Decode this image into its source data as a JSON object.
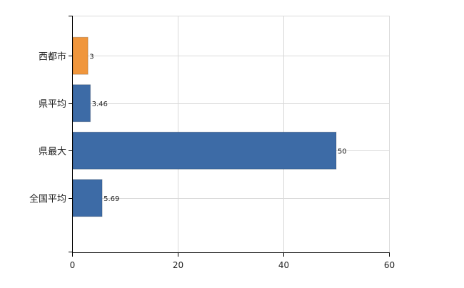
{
  "chart_data": {
    "type": "bar",
    "orientation": "horizontal",
    "categories": [
      "西都市",
      "県平均",
      "県最大",
      "全国平均"
    ],
    "values": [
      3,
      3.46,
      50,
      5.69
    ],
    "data_labels": [
      "3",
      "3.46",
      "50",
      "5.69"
    ],
    "bar_colors": [
      "#f0963c",
      "#3d6ba6",
      "#3d6ba6",
      "#3d6ba6"
    ],
    "xlim": [
      0,
      60
    ],
    "xticks": [
      0,
      20,
      40,
      60
    ],
    "xtick_labels": [
      "0",
      "20",
      "40",
      "60"
    ],
    "grid": true,
    "title": "",
    "xlabel": "",
    "ylabel": ""
  },
  "colors": {
    "highlight": "#f0963c",
    "bar": "#3d6ba6",
    "grid": "#d9d9d9",
    "axis": "#000000"
  }
}
